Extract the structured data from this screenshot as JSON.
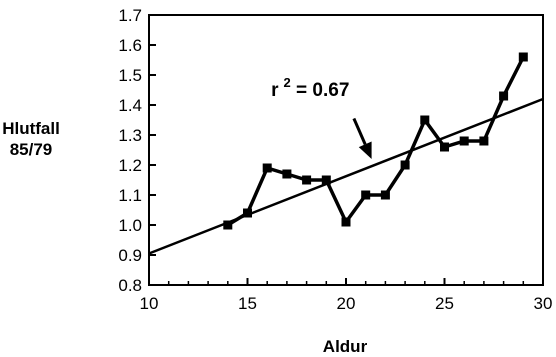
{
  "chart_data": {
    "type": "line",
    "title": "",
    "xlabel": "Aldur",
    "ylabel_lines": [
      "Hlutfall",
      "85/79"
    ],
    "xlim": [
      10,
      30
    ],
    "ylim": [
      0.8,
      1.7
    ],
    "x_ticks": [
      10,
      15,
      20,
      25,
      30
    ],
    "x_tick_labels": [
      "10",
      "15",
      "20",
      "25",
      "30"
    ],
    "y_ticks": [
      0.8,
      0.9,
      1.0,
      1.1,
      1.2,
      1.3,
      1.4,
      1.5,
      1.6,
      1.7
    ],
    "y_tick_labels": [
      "0.8",
      "0.9",
      "1.0",
      "1.1",
      "1.2",
      "1.3",
      "1.4",
      "1.5",
      "1.6",
      "1.7"
    ],
    "grid": false,
    "legend": "none",
    "series": [
      {
        "x": [
          14,
          15,
          16,
          17,
          18,
          19,
          20,
          21,
          22,
          23,
          24,
          25,
          26,
          27,
          28,
          29
        ],
        "values": [
          1.0,
          1.04,
          1.19,
          1.17,
          1.15,
          1.15,
          1.01,
          1.1,
          1.1,
          1.2,
          1.35,
          1.26,
          1.28,
          1.28,
          1.43,
          1.56
        ],
        "marker": "square",
        "color": "#000000"
      }
    ],
    "regression_line": {
      "x": [
        10,
        30
      ],
      "y": [
        0.905,
        1.42
      ],
      "color": "#000000"
    },
    "annotation": {
      "text_prefix": "r",
      "text_sup": "2",
      "text_suffix": " = 0.67",
      "text_at": [
        16.2,
        1.43
      ],
      "arrow_from": [
        20.4,
        1.355
      ],
      "arrow_to": [
        21.3,
        1.22
      ]
    }
  }
}
